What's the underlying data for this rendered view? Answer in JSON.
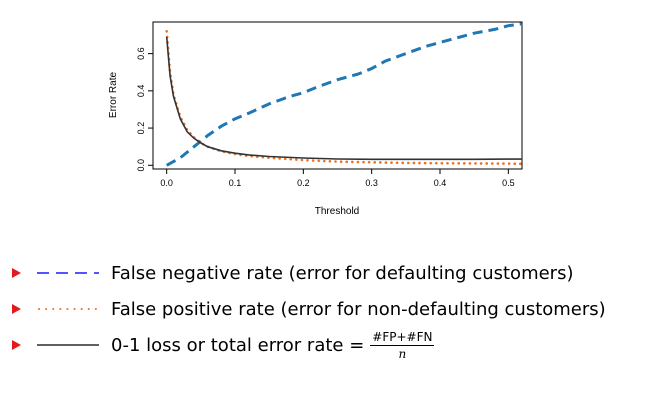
{
  "chart_data": {
    "type": "line",
    "xlabel": "Threshold",
    "ylabel": "Error Rate",
    "xlim": [
      -0.02,
      0.52
    ],
    "ylim": [
      -0.02,
      0.77
    ],
    "xticks": [
      "0.0",
      "0.1",
      "0.2",
      "0.3",
      "0.4",
      "0.5"
    ],
    "yticks": [
      "0.0",
      "0.2",
      "0.4",
      "0.6"
    ],
    "series": [
      {
        "key": "fnr",
        "color": "#1f77b4",
        "style": "dashed",
        "x": [
          0.0,
          0.02,
          0.04,
          0.06,
          0.08,
          0.1,
          0.12,
          0.15,
          0.18,
          0.2,
          0.22,
          0.25,
          0.28,
          0.3,
          0.32,
          0.35,
          0.38,
          0.4,
          0.42,
          0.45,
          0.48,
          0.5,
          0.52
        ],
        "y": [
          0.0,
          0.04,
          0.1,
          0.16,
          0.21,
          0.25,
          0.28,
          0.33,
          0.37,
          0.39,
          0.42,
          0.46,
          0.49,
          0.52,
          0.56,
          0.6,
          0.64,
          0.66,
          0.68,
          0.71,
          0.73,
          0.75,
          0.76
        ]
      },
      {
        "key": "fpr",
        "color": "#e8742b",
        "style": "dotted",
        "x": [
          0.0,
          0.005,
          0.01,
          0.02,
          0.03,
          0.04,
          0.05,
          0.06,
          0.08,
          0.1,
          0.12,
          0.15,
          0.2,
          0.25,
          0.3,
          0.35,
          0.4,
          0.45,
          0.5,
          0.52
        ],
        "y": [
          0.72,
          0.5,
          0.38,
          0.26,
          0.19,
          0.15,
          0.12,
          0.1,
          0.075,
          0.06,
          0.05,
          0.04,
          0.028,
          0.02,
          0.016,
          0.013,
          0.011,
          0.01,
          0.009,
          0.008
        ]
      },
      {
        "key": "total",
        "color": "#333333",
        "style": "solid",
        "x": [
          0.0,
          0.005,
          0.01,
          0.02,
          0.03,
          0.04,
          0.05,
          0.06,
          0.08,
          0.1,
          0.12,
          0.15,
          0.2,
          0.25,
          0.3,
          0.35,
          0.4,
          0.45,
          0.5,
          0.52
        ],
        "y": [
          0.69,
          0.48,
          0.37,
          0.25,
          0.18,
          0.145,
          0.12,
          0.1,
          0.078,
          0.065,
          0.056,
          0.047,
          0.039,
          0.034,
          0.032,
          0.032,
          0.032,
          0.032,
          0.033,
          0.033
        ]
      }
    ]
  },
  "legend": [
    {
      "key": "fnr",
      "text": "False negative rate (error for defaulting customers)"
    },
    {
      "key": "fpr",
      "text": "False positive rate (error for non-defaulting customers)"
    },
    {
      "key": "total",
      "text": "0-1 loss or total error rate =",
      "frac_num": "#FP+#FN",
      "frac_den": "n"
    }
  ],
  "colors": {
    "bullet": "#e31a1c"
  }
}
